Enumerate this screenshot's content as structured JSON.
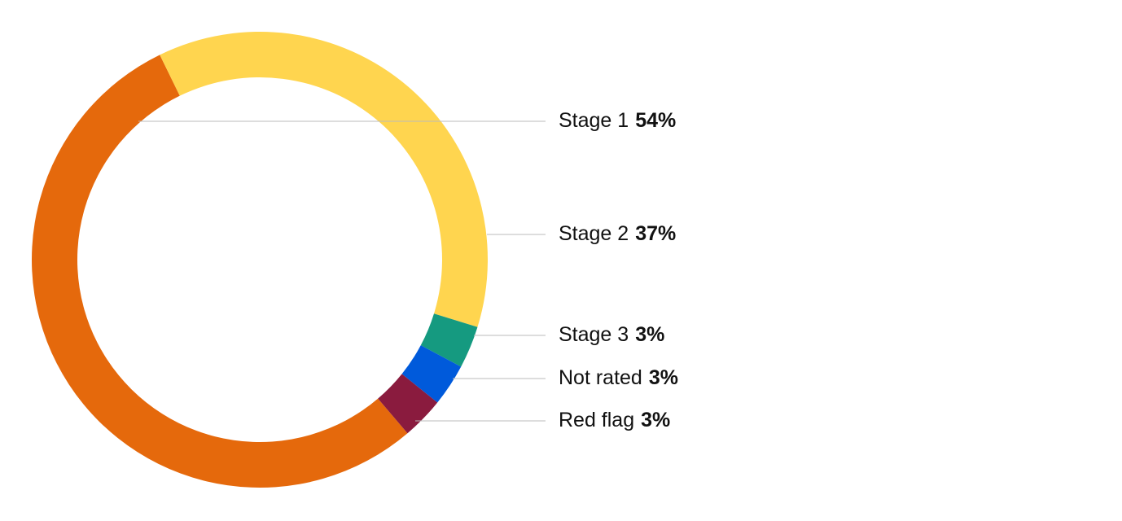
{
  "chart_data": {
    "type": "donut",
    "categories": [
      "Stage 1",
      "Stage 2",
      "Stage 3",
      "Not rated",
      "Red flag"
    ],
    "values": [
      54,
      37,
      3,
      3,
      3
    ],
    "value_labels": [
      "54%",
      "37%",
      "3%",
      "3%",
      "3%"
    ],
    "colors": [
      "#E5690C",
      "#FFD54F",
      "#159A80",
      "#005ADB",
      "#8A1B3E"
    ]
  }
}
